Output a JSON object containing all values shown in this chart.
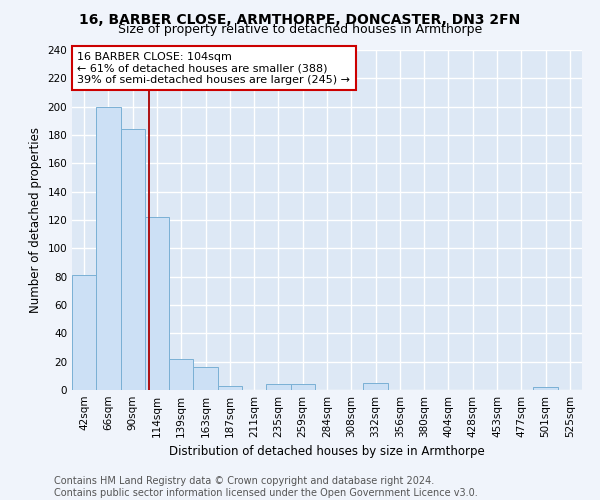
{
  "title": "16, BARBER CLOSE, ARMTHORPE, DONCASTER, DN3 2FN",
  "subtitle": "Size of property relative to detached houses in Armthorpe",
  "xlabel": "Distribution of detached houses by size in Armthorpe",
  "ylabel": "Number of detached properties",
  "bar_color": "#cce0f5",
  "bar_edge_color": "#7ab0d4",
  "bg_color": "#dde8f5",
  "grid_color": "#ffffff",
  "categories": [
    "42sqm",
    "66sqm",
    "90sqm",
    "114sqm",
    "139sqm",
    "163sqm",
    "187sqm",
    "211sqm",
    "235sqm",
    "259sqm",
    "284sqm",
    "308sqm",
    "332sqm",
    "356sqm",
    "380sqm",
    "404sqm",
    "428sqm",
    "453sqm",
    "477sqm",
    "501sqm",
    "525sqm"
  ],
  "values": [
    81,
    200,
    184,
    122,
    22,
    16,
    3,
    0,
    4,
    4,
    0,
    0,
    5,
    0,
    0,
    0,
    0,
    0,
    0,
    2,
    0
  ],
  "ylim": [
    0,
    240
  ],
  "yticks": [
    0,
    20,
    40,
    60,
    80,
    100,
    120,
    140,
    160,
    180,
    200,
    220,
    240
  ],
  "vline_x": 2.65,
  "vline_color": "#aa0000",
  "annotation_title": "16 BARBER CLOSE: 104sqm",
  "annotation_line1": "← 61% of detached houses are smaller (388)",
  "annotation_line2": "39% of semi-detached houses are larger (245) →",
  "annotation_box_color": "#ffffff",
  "annotation_box_edge_color": "#cc0000",
  "footer_line1": "Contains HM Land Registry data © Crown copyright and database right 2024.",
  "footer_line2": "Contains public sector information licensed under the Open Government Licence v3.0.",
  "title_fontsize": 10,
  "subtitle_fontsize": 9,
  "axis_label_fontsize": 8.5,
  "tick_fontsize": 7.5,
  "annotation_fontsize": 8,
  "footer_fontsize": 7
}
